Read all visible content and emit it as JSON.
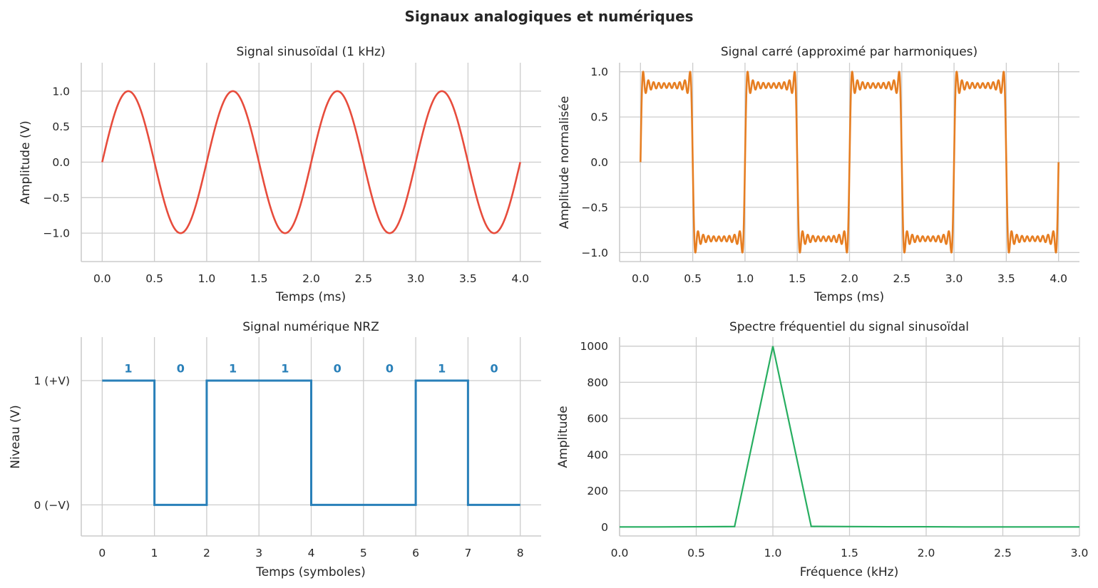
{
  "figure_title": "Signaux analogiques et numériques",
  "chart_data": [
    {
      "type": "line",
      "title": "Signal sinusoïdal (1 kHz)",
      "xlabel": "Temps (ms)",
      "ylabel": "Amplitude (V)",
      "color": "#e74c3c",
      "function": "sin(2*pi*1*t)",
      "frequency_khz": 1,
      "amplitude": 1.0,
      "x_range": [
        0,
        4
      ],
      "xlim": [
        -0.2,
        4.2
      ],
      "ylim": [
        -1.4,
        1.4
      ],
      "xticks": [
        "0.0",
        "0.5",
        "1.0",
        "1.5",
        "2.0",
        "2.5",
        "3.0",
        "3.5",
        "4.0"
      ],
      "yticks": [
        "−1.0",
        "−0.5",
        "0.0",
        "0.5",
        "1.0"
      ],
      "grid": true
    },
    {
      "type": "line",
      "title": "Signal carré (approximé par harmoniques)",
      "xlabel": "Temps (ms)",
      "ylabel": "Amplitude normalisée",
      "color": "#e67e22",
      "function": "normalized sum of odd harmonics 1..19 of a 1 kHz square wave",
      "frequency_khz": 1,
      "harmonics": [
        1,
        3,
        5,
        7,
        9,
        11,
        13,
        15,
        17,
        19
      ],
      "x_range": [
        0,
        4
      ],
      "xlim": [
        -0.2,
        4.2
      ],
      "ylim": [
        -1.1,
        1.1
      ],
      "xticks": [
        "0.0",
        "0.5",
        "1.0",
        "1.5",
        "2.0",
        "2.5",
        "3.0",
        "3.5",
        "4.0"
      ],
      "yticks": [
        "−1.0",
        "−0.5",
        "0.0",
        "0.5",
        "1.0"
      ],
      "grid": true
    },
    {
      "type": "line",
      "step": "post",
      "title": "Signal numérique NRZ",
      "xlabel": "Temps (symboles)",
      "ylabel": "Niveau (V)",
      "color": "#2980b9",
      "bits": [
        "1",
        "0",
        "1",
        "1",
        "0",
        "0",
        "1",
        "0"
      ],
      "levels": [
        1,
        0,
        1,
        1,
        0,
        0,
        1,
        0
      ],
      "xlim": [
        -0.4,
        8.4
      ],
      "ylim": [
        -0.25,
        1.35
      ],
      "xticks": [
        "0",
        "1",
        "2",
        "3",
        "4",
        "5",
        "6",
        "7",
        "8"
      ],
      "yticks": [
        {
          "value": 1,
          "label": "1 (+V)"
        },
        {
          "value": 0,
          "label": "0 (−V)"
        }
      ],
      "grid": true
    },
    {
      "type": "line",
      "title": "Spectre fréquentiel du signal sinusoïdal",
      "xlabel": "Fréquence (kHz)",
      "ylabel": "Amplitude",
      "color": "#27ae60",
      "x": [
        0,
        0.25,
        0.5,
        0.75,
        1.0,
        1.25,
        1.5,
        1.75,
        2.0,
        2.25,
        2.5,
        2.75,
        3.0
      ],
      "y": [
        0,
        0,
        1,
        2,
        1000,
        3,
        2,
        1,
        1,
        0,
        0,
        0,
        0
      ],
      "xlim": [
        0,
        3
      ],
      "ylim": [
        -50,
        1050
      ],
      "xticks": [
        "0.0",
        "0.5",
        "1.0",
        "1.5",
        "2.0",
        "2.5",
        "3.0"
      ],
      "yticks": [
        "0",
        "200",
        "400",
        "600",
        "800",
        "1000"
      ],
      "grid": true
    }
  ]
}
